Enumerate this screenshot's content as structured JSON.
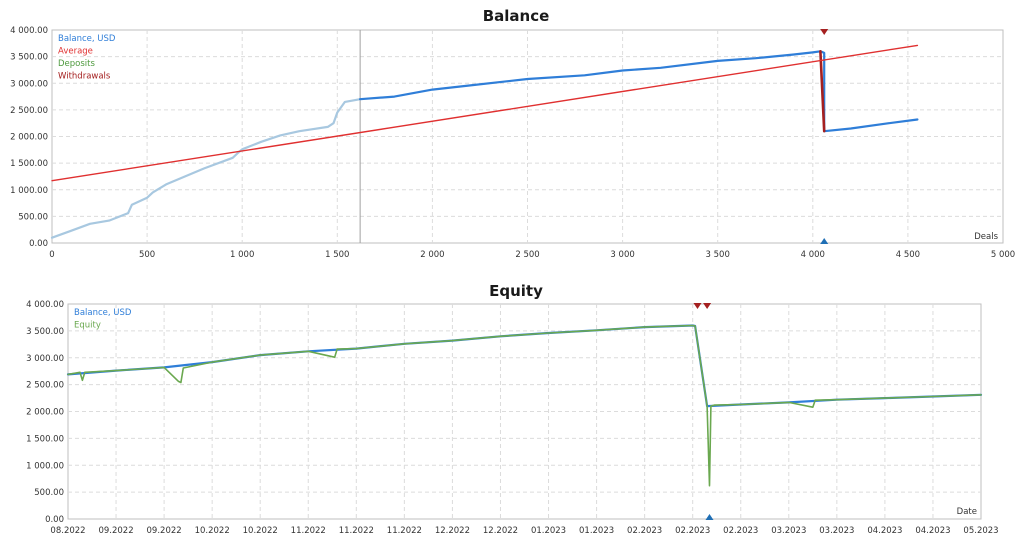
{
  "chart_data": [
    {
      "type": "line",
      "title": "Balance",
      "xlabel": "Deals",
      "ylabel": "",
      "xlim": [
        0,
        5000
      ],
      "ylim": [
        0,
        4000
      ],
      "grid": true,
      "legend_position": "top-left",
      "x_ticks": [
        "0",
        "500",
        "1 000",
        "1 500",
        "2 000",
        "2 500",
        "3 000",
        "3 500",
        "4 000",
        "4 500",
        "5 000"
      ],
      "y_ticks": [
        "0.00",
        "500.00",
        "1 000.00",
        "1 500.00",
        "2 000.00",
        "2 500.00",
        "3 000.00",
        "3 500.00",
        "4 000.00"
      ],
      "legend": [
        {
          "name": "Balance, USD",
          "color": "#2f7ed8"
        },
        {
          "name": "Average",
          "color": "#e03030"
        },
        {
          "name": "Deposits",
          "color": "#4e9a3e"
        },
        {
          "name": "Withdrawals",
          "color": "#a52020"
        }
      ],
      "series": [
        {
          "name": "Balance, USD (in-sample)",
          "color": "#a8c8e0",
          "x": [
            0,
            100,
            200,
            300,
            400,
            420,
            500,
            530,
            600,
            800,
            950,
            980,
            1000,
            1100,
            1200,
            1300,
            1450,
            1480,
            1500,
            1540,
            1620
          ],
          "y": [
            100,
            230,
            360,
            420,
            560,
            720,
            850,
            950,
            1100,
            1400,
            1600,
            1700,
            1760,
            1900,
            2020,
            2100,
            2180,
            2250,
            2450,
            2650,
            2700
          ]
        },
        {
          "name": "Balance, USD (out-of-sample)",
          "color": "#2f7ed8",
          "x": [
            1620,
            1800,
            2000,
            2200,
            2500,
            2800,
            3000,
            3200,
            3500,
            3700,
            3900,
            4000,
            4040,
            4060,
            4060,
            4200,
            4400,
            4550
          ],
          "y": [
            2700,
            2750,
            2880,
            2960,
            3080,
            3150,
            3240,
            3290,
            3420,
            3470,
            3540,
            3580,
            3600,
            3570,
            2100,
            2150,
            2250,
            2320
          ]
        },
        {
          "name": "Withdrawal",
          "color": "#a52020",
          "x": [
            4040,
            4060
          ],
          "y": [
            3600,
            2100
          ]
        },
        {
          "name": "Average",
          "color": "#e03030",
          "x": [
            0,
            4550
          ],
          "y": [
            1170,
            3710
          ]
        }
      ],
      "markers": [
        {
          "type": "withdrawal",
          "x": 4060,
          "color": "#a52020"
        },
        {
          "type": "deposit",
          "x": 4060,
          "color": "#1f6fb5"
        }
      ],
      "divider_x": 1620
    },
    {
      "type": "line",
      "title": "Equity",
      "xlabel": "Date",
      "ylabel": "",
      "xlim": [
        0,
        19
      ],
      "ylim": [
        0,
        4000
      ],
      "grid": true,
      "legend_position": "top-left",
      "x_ticks": [
        "08.2022",
        "09.2022",
        "09.2022",
        "10.2022",
        "10.2022",
        "11.2022",
        "11.2022",
        "11.2022",
        "12.2022",
        "12.2022",
        "01.2023",
        "01.2023",
        "02.2023",
        "02.2023",
        "02.2023",
        "03.2023",
        "03.2023",
        "04.2023",
        "04.2023",
        "05.2023"
      ],
      "y_ticks": [
        "0.00",
        "500.00",
        "1 000.00",
        "1 500.00",
        "2 000.00",
        "2 500.00",
        "3 000.00",
        "3 500.00",
        "4 000.00"
      ],
      "legend": [
        {
          "name": "Balance, USD",
          "color": "#2f7ed8"
        },
        {
          "name": "Equity",
          "color": "#6aa84f"
        }
      ],
      "series": [
        {
          "name": "Balance, USD",
          "color": "#2f7ed8",
          "x": [
            0,
            1,
            2,
            3,
            4,
            5,
            6,
            7,
            8,
            9,
            10,
            11,
            12,
            13,
            13.05,
            13.3,
            14,
            15,
            16,
            17,
            18,
            19
          ],
          "y": [
            2690,
            2760,
            2820,
            2920,
            3050,
            3120,
            3170,
            3260,
            3320,
            3400,
            3460,
            3510,
            3570,
            3600,
            3590,
            2100,
            2130,
            2170,
            2220,
            2250,
            2280,
            2310
          ]
        },
        {
          "name": "Equity",
          "color": "#6aa84f",
          "x": [
            0,
            0.25,
            0.3,
            0.35,
            1,
            2,
            2.3,
            2.35,
            2.4,
            3,
            4,
            5,
            5.5,
            5.55,
            5.6,
            6,
            7,
            8,
            9,
            10,
            11,
            12,
            13,
            13.05,
            13.3,
            13.35,
            13.38,
            13.45,
            14,
            15,
            15.5,
            15.55,
            16,
            17,
            18,
            19
          ],
          "y": [
            2690,
            2730,
            2580,
            2730,
            2760,
            2820,
            2560,
            2540,
            2810,
            2920,
            3050,
            3120,
            3020,
            3010,
            3160,
            3170,
            3260,
            3320,
            3400,
            3460,
            3510,
            3570,
            3600,
            3590,
            2100,
            620,
            2100,
            2120,
            2130,
            2170,
            2080,
            2210,
            2220,
            2250,
            2280,
            2310
          ]
        }
      ],
      "markers": [
        {
          "type": "withdrawal",
          "x": 13.1,
          "color": "#a52020"
        },
        {
          "type": "withdrawal",
          "x": 13.3,
          "color": "#a52020"
        },
        {
          "type": "deposit",
          "x": 13.35,
          "color": "#1f6fb5"
        }
      ]
    }
  ]
}
